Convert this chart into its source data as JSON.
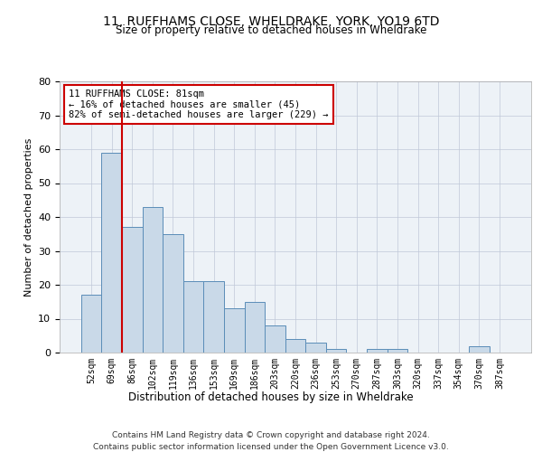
{
  "title": "11, RUFFHAMS CLOSE, WHELDRAKE, YORK, YO19 6TD",
  "subtitle": "Size of property relative to detached houses in Wheldrake",
  "xlabel": "Distribution of detached houses by size in Wheldrake",
  "ylabel": "Number of detached properties",
  "bar_color": "#c9d9e8",
  "bar_edge_color": "#5b8db8",
  "categories": [
    "52sqm",
    "69sqm",
    "86sqm",
    "102sqm",
    "119sqm",
    "136sqm",
    "153sqm",
    "169sqm",
    "186sqm",
    "203sqm",
    "220sqm",
    "236sqm",
    "253sqm",
    "270sqm",
    "287sqm",
    "303sqm",
    "320sqm",
    "337sqm",
    "354sqm",
    "370sqm",
    "387sqm"
  ],
  "values": [
    17,
    59,
    37,
    43,
    35,
    21,
    21,
    13,
    15,
    8,
    4,
    3,
    1,
    0,
    1,
    1,
    0,
    0,
    0,
    2,
    0
  ],
  "ylim": [
    0,
    80
  ],
  "yticks": [
    0,
    10,
    20,
    30,
    40,
    50,
    60,
    70,
    80
  ],
  "vline_x": 1.5,
  "vline_color": "#cc0000",
  "annotation_text": "11 RUFFHAMS CLOSE: 81sqm\n← 16% of detached houses are smaller (45)\n82% of semi-detached houses are larger (229) →",
  "annotation_box_color": "#ffffff",
  "annotation_box_edge": "#cc0000",
  "footer_line1": "Contains HM Land Registry data © Crown copyright and database right 2024.",
  "footer_line2": "Contains public sector information licensed under the Open Government Licence v3.0.",
  "background_color": "#edf2f7",
  "grid_color": "#c0c8d8"
}
